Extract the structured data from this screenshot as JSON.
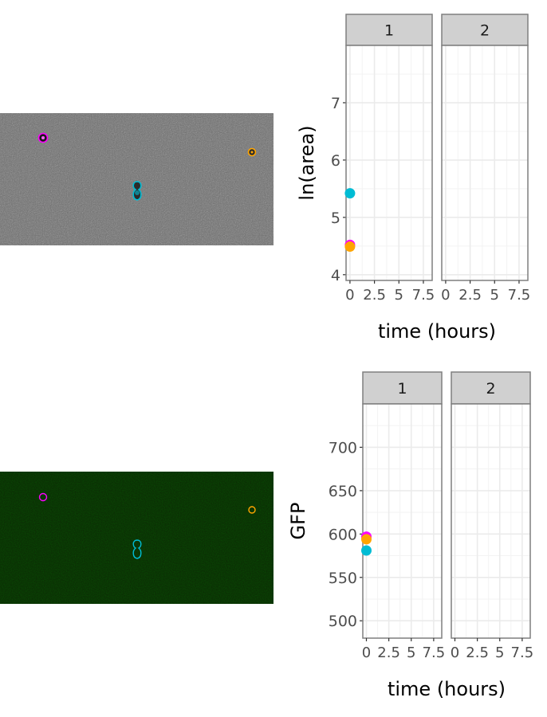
{
  "images": [
    {
      "name": "brightfield",
      "background": "#6b6b6b",
      "cells": [
        {
          "color": "#ff00ff",
          "shape": "round"
        },
        {
          "color": "#00bcd4",
          "shape": "peanut"
        },
        {
          "color": "#ffa500",
          "shape": "round"
        }
      ]
    },
    {
      "name": "gfp",
      "background": "#0c2405",
      "cells": [
        {
          "color": "#ff00ff",
          "shape": "round"
        },
        {
          "color": "#00bcd4",
          "shape": "peanut"
        },
        {
          "color": "#ffa500",
          "shape": "round"
        }
      ]
    }
  ],
  "colors": {
    "magenta": "#ff00ff",
    "cyan": "#00bcd4",
    "orange": "#ffa500",
    "strip": "#d0d0d0",
    "panel_border": "#7f7f7f",
    "grid": "#ebebeb"
  },
  "chart_data": [
    {
      "type": "scatter",
      "xlabel": "time (hours)",
      "ylabel": "ln(area)",
      "facets": [
        "1",
        "2"
      ],
      "xlim": [
        -0.4,
        8.4
      ],
      "ylim": [
        3.9,
        8.0
      ],
      "xticks": [
        0,
        2.5,
        5,
        7.5
      ],
      "xtick_labels": [
        "0",
        "2.5",
        "5",
        "7.5"
      ],
      "yticks": [
        4,
        5,
        6,
        7
      ],
      "ytick_labels": [
        "4",
        "5",
        "6",
        "7"
      ],
      "grid": true,
      "legend": "none",
      "series": [
        {
          "color": "#ff00ff",
          "points": [
            {
              "facet": "1",
              "x": 0,
              "y": 4.52
            }
          ]
        },
        {
          "color": "#00bcd4",
          "points": [
            {
              "facet": "1",
              "x": 0,
              "y": 5.42
            }
          ]
        },
        {
          "color": "#ffa500",
          "points": [
            {
              "facet": "1",
              "x": 0,
              "y": 4.49
            }
          ]
        }
      ]
    },
    {
      "type": "scatter",
      "xlabel": "time (hours)",
      "ylabel": "GFP",
      "facets": [
        "1",
        "2"
      ],
      "xlim": [
        -0.4,
        8.4
      ],
      "ylim": [
        480,
        750
      ],
      "xticks": [
        0,
        2.5,
        5,
        7.5
      ],
      "xtick_labels": [
        "0",
        "2.5",
        "5",
        "7.5"
      ],
      "yticks": [
        500,
        550,
        600,
        650,
        700
      ],
      "ytick_labels": [
        "500",
        "550",
        "600",
        "650",
        "700"
      ],
      "grid": true,
      "legend": "none",
      "series": [
        {
          "color": "#ff00ff",
          "points": [
            {
              "facet": "1",
              "x": 0,
              "y": 597
            }
          ]
        },
        {
          "color": "#00bcd4",
          "points": [
            {
              "facet": "1",
              "x": 0,
              "y": 581
            }
          ]
        },
        {
          "color": "#ffa500",
          "points": [
            {
              "facet": "1",
              "x": 0,
              "y": 594
            }
          ]
        }
      ]
    }
  ]
}
